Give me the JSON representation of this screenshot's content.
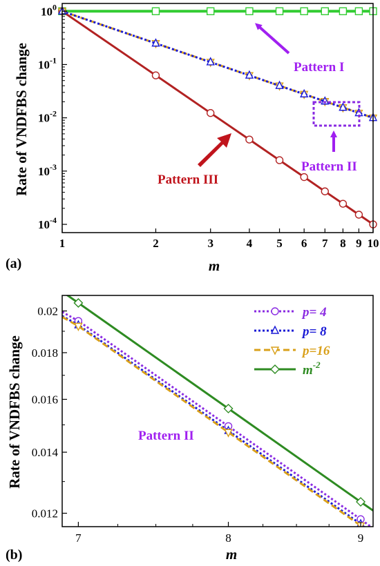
{
  "colors": {
    "pattern1": "#33cc33",
    "pattern2_p4": "#8a2be2",
    "pattern2_p8": "#1a1ad6",
    "pattern2_p16": "#d9a01a",
    "pattern3": "#b22222",
    "m2": "#2e8b22",
    "annot_purple": "#a020f0",
    "annot_red": "#c0141c",
    "markerfill": "#ffffff"
  },
  "chart_data": [
    {
      "panel_label": "(a)",
      "type": "line",
      "xscale": "log",
      "yscale": "log",
      "xlabel": "m",
      "ylabel": "Rate of VNDFBS change",
      "xlim": [
        1,
        10
      ],
      "ylim": [
        7e-05,
        1.4
      ],
      "xticks": [
        1,
        2,
        3,
        4,
        5,
        6,
        7,
        8,
        9,
        10
      ],
      "xtick_labels": [
        "1",
        "2",
        "3",
        "4",
        "5",
        "6",
        "7",
        "8",
        "9",
        "10"
      ],
      "yticks": [
        1,
        0.1,
        0.01,
        0.001,
        0.0001
      ],
      "ytick_labels": [
        [
          "10",
          "0"
        ],
        [
          "10",
          "-1"
        ],
        [
          "10",
          "-2"
        ],
        [
          "10",
          "-3"
        ],
        [
          "10",
          "-4"
        ]
      ],
      "x": [
        1,
        2,
        3,
        4,
        5,
        6,
        7,
        8,
        9,
        10
      ],
      "series": [
        {
          "color_key": "pattern1",
          "style": "solid",
          "marker": "square",
          "values": [
            1,
            1,
            1,
            1,
            1,
            1,
            1,
            1,
            1,
            1
          ]
        },
        {
          "color_key": "pattern3",
          "style": "solid",
          "marker": "circle",
          "values": [
            1,
            0.0625,
            0.0123,
            0.00391,
            0.0016,
            0.000772,
            0.000416,
            0.000244,
            0.000152,
            0.0001
          ]
        },
        {
          "color_key": "pattern2_p16",
          "style": "dashed",
          "marker": "triangle-down",
          "values": [
            1,
            0.25,
            0.111,
            0.0625,
            0.04,
            0.0278,
            0.0204,
            0.0156,
            0.0123,
            0.01
          ]
        },
        {
          "color_key": "pattern2_p8",
          "style": "dotted",
          "marker": "triangle-up",
          "values": [
            1,
            0.25,
            0.111,
            0.0625,
            0.04,
            0.0278,
            0.0204,
            0.0156,
            0.0123,
            0.01
          ]
        }
      ],
      "annotations": [
        {
          "text": "Pattern I",
          "color_key": "annot_purple"
        },
        {
          "text": "Pattern II",
          "color_key": "annot_purple"
        },
        {
          "text": "Pattern III",
          "color_key": "annot_red"
        }
      ]
    },
    {
      "panel_label": "(b)",
      "type": "line",
      "xscale": "log",
      "yscale": "log",
      "xlabel": "m",
      "ylabel": "Rate of VNDFBS change",
      "xlim": [
        6.9,
        9.1
      ],
      "ylim": [
        0.0116,
        0.0208
      ],
      "xticks": [
        7,
        8,
        9
      ],
      "xtick_labels": [
        "7",
        "8",
        "9"
      ],
      "yticks": [
        0.02,
        0.018,
        0.016,
        0.014,
        0.012
      ],
      "ytick_labels": [
        "0.02",
        "0.018",
        "0.016",
        "0.014",
        "0.012"
      ],
      "series": [
        {
          "name": "p= 4",
          "color_key": "pattern2_p4",
          "style": "dotted",
          "marker": "circle",
          "x": [
            6.9,
            7,
            8,
            9,
            9.1
          ],
          "values": [
            0.01995,
            0.0195,
            0.01495,
            0.01182,
            0.01155
          ]
        },
        {
          "name": "p= 8",
          "color_key": "pattern2_p8",
          "style": "dotted",
          "marker": "triangle-up",
          "x": [
            6.9,
            7,
            8,
            9,
            9.1
          ],
          "values": [
            0.01975,
            0.0193,
            0.01478,
            0.01168,
            0.01142
          ]
        },
        {
          "name": "p=16",
          "color_key": "pattern2_p16",
          "style": "dashed",
          "marker": "triangle-down",
          "x": [
            6.9,
            7,
            8,
            9,
            9.1
          ],
          "values": [
            0.0197,
            0.01925,
            0.01472,
            0.01163,
            0.01138
          ]
        },
        {
          "name": "m^-2",
          "color_key": "m2",
          "style": "solid",
          "marker": "diamond",
          "x": [
            6.9,
            7,
            8,
            9,
            9.1
          ],
          "values": [
            0.021,
            0.02041,
            0.01563,
            0.01235,
            0.01208
          ]
        }
      ],
      "annotations": [
        {
          "text": "Pattern II",
          "color_key": "annot_purple"
        }
      ]
    }
  ]
}
